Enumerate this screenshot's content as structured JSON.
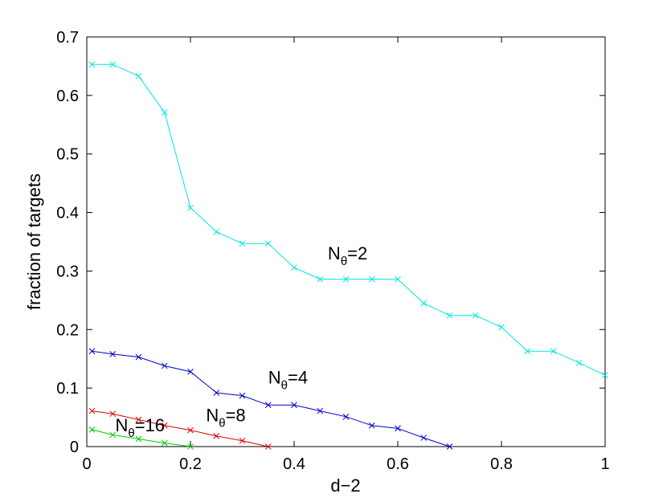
{
  "chart_data": {
    "type": "line",
    "title": "",
    "xlabel": "d−2",
    "ylabel": "fraction of targets",
    "xlim": [
      0,
      1
    ],
    "ylim": [
      0,
      0.7
    ],
    "xticks": [
      0,
      0.2,
      0.4,
      0.6,
      0.8,
      1
    ],
    "xtick_labels": [
      "0",
      "0.2",
      "0.4",
      "0.6",
      "0.8",
      "1"
    ],
    "yticks": [
      0,
      0.1,
      0.2,
      0.3,
      0.4,
      0.5,
      0.6,
      0.7
    ],
    "ytick_labels": [
      "0",
      "0.1",
      "0.2",
      "0.3",
      "0.4",
      "0.5",
      "0.6",
      "0.7"
    ],
    "grid": false,
    "marker": "x",
    "series": [
      {
        "annotation": {
          "base": "N",
          "sub": "θ",
          "rest": "=2"
        },
        "color": "#00e5e5",
        "x": [
          0.01,
          0.05,
          0.1,
          0.15,
          0.2,
          0.25,
          0.3,
          0.35,
          0.4,
          0.45,
          0.5,
          0.55,
          0.6,
          0.65,
          0.7,
          0.75,
          0.8,
          0.85,
          0.9,
          0.95,
          1.0
        ],
        "y": [
          0.653,
          0.653,
          0.633,
          0.571,
          0.408,
          0.367,
          0.347,
          0.347,
          0.306,
          0.286,
          0.286,
          0.286,
          0.286,
          0.245,
          0.224,
          0.224,
          0.204,
          0.163,
          0.163,
          0.143,
          0.122
        ]
      },
      {
        "annotation": {
          "base": "N",
          "sub": "θ",
          "rest": "=4"
        },
        "color": "#0000cc",
        "x": [
          0.01,
          0.05,
          0.1,
          0.15,
          0.2,
          0.25,
          0.3,
          0.35,
          0.4,
          0.45,
          0.5,
          0.55,
          0.6,
          0.65,
          0.7
        ],
        "y": [
          0.163,
          0.158,
          0.153,
          0.138,
          0.128,
          0.092,
          0.087,
          0.071,
          0.071,
          0.061,
          0.051,
          0.036,
          0.031,
          0.015,
          0.0
        ]
      },
      {
        "annotation": {
          "base": "N",
          "sub": "θ",
          "rest": "=8"
        },
        "color": "#e00000",
        "x": [
          0.01,
          0.05,
          0.1,
          0.15,
          0.2,
          0.25,
          0.3,
          0.35
        ],
        "y": [
          0.061,
          0.056,
          0.046,
          0.036,
          0.028,
          0.018,
          0.01,
          0.0
        ]
      },
      {
        "annotation": {
          "base": "N",
          "sub": "θ",
          "rest": "=16"
        },
        "color": "#00cc00",
        "x": [
          0.01,
          0.05,
          0.1,
          0.15,
          0.2
        ],
        "y": [
          0.029,
          0.02,
          0.013,
          0.006,
          0.0
        ]
      }
    ]
  }
}
